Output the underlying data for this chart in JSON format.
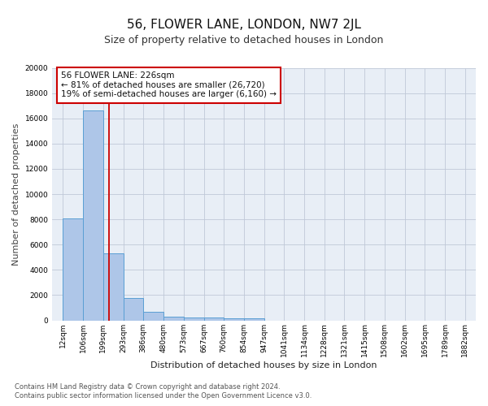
{
  "title": "56, FLOWER LANE, LONDON, NW7 2JL",
  "subtitle": "Size of property relative to detached houses in London",
  "xlabel": "Distribution of detached houses by size in London",
  "ylabel": "Number of detached properties",
  "footnote1": "Contains HM Land Registry data © Crown copyright and database right 2024.",
  "footnote2": "Contains public sector information licensed under the Open Government Licence v3.0.",
  "bar_edges": [
    12,
    106,
    199,
    293,
    386,
    480,
    573,
    667,
    760,
    854,
    947,
    1041,
    1134,
    1228,
    1321,
    1415,
    1508,
    1602,
    1695,
    1789,
    1882
  ],
  "bar_heights": [
    8100,
    16600,
    5300,
    1750,
    700,
    320,
    250,
    200,
    170,
    155,
    0,
    0,
    0,
    0,
    0,
    0,
    0,
    0,
    0,
    0
  ],
  "bar_color": "#aec6e8",
  "bar_edgecolor": "#5a9fd4",
  "bg_color": "#e8eef6",
  "vline_x": 226,
  "vline_color": "#cc0000",
  "annotation_text": "56 FLOWER LANE: 226sqm\n← 81% of detached houses are smaller (26,720)\n19% of semi-detached houses are larger (6,160) →",
  "annotation_box_color": "#ffffff",
  "annotation_box_edgecolor": "#cc0000",
  "ylim": [
    0,
    20000
  ],
  "yticks": [
    0,
    2000,
    4000,
    6000,
    8000,
    10000,
    12000,
    14000,
    16000,
    18000,
    20000
  ],
  "xtick_labels": [
    "12sqm",
    "106sqm",
    "199sqm",
    "293sqm",
    "386sqm",
    "480sqm",
    "573sqm",
    "667sqm",
    "760sqm",
    "854sqm",
    "947sqm",
    "1041sqm",
    "1134sqm",
    "1228sqm",
    "1321sqm",
    "1415sqm",
    "1508sqm",
    "1602sqm",
    "1695sqm",
    "1789sqm",
    "1882sqm"
  ],
  "grid_color": "#c0c8d8",
  "title_fontsize": 11,
  "subtitle_fontsize": 9,
  "axis_label_fontsize": 8,
  "tick_fontsize": 6.5,
  "annotation_fontsize": 7.5,
  "footnote_fontsize": 6
}
